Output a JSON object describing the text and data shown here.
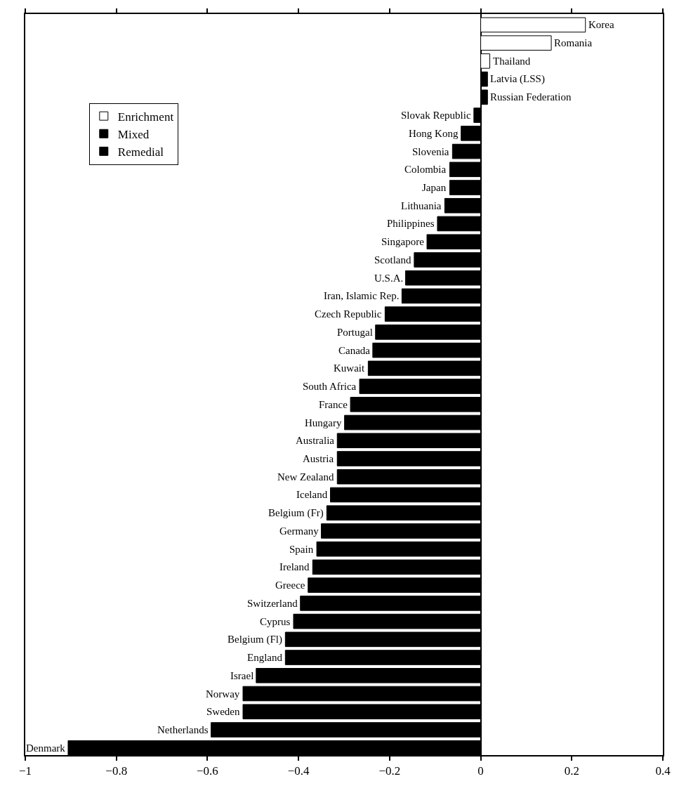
{
  "chart_data": {
    "type": "bar",
    "orientation": "horizontal",
    "stacked": true,
    "categories": [
      "Korea",
      "Romania",
      "Thailand",
      "Latvia (LSS)",
      "Russian Federation",
      "Slovak Republic",
      "Hong Kong",
      "Slovenia",
      "Colombia",
      "Japan",
      "Lithuania",
      "Philippines",
      "Singapore",
      "Scotland",
      "U.S.A.",
      "Iran, Islamic Rep.",
      "Czech Republic",
      "Portugal",
      "Canada",
      "Kuwait",
      "South Africa",
      "France",
      "Hungary",
      "Australia",
      "Austria",
      "New Zealand",
      "Iceland",
      "Belgium (Fr)",
      "Germany",
      "Spain",
      "Ireland",
      "Greece",
      "Switzerland",
      "Cyprus",
      "Belgium (Fl)",
      "England",
      "Israel",
      "Norway",
      "Sweden",
      "Netherlands",
      "Denmark"
    ],
    "series": [
      {
        "name": "Enrichment",
        "color": "#ffffff",
        "values": [
          0.23,
          0.155,
          0.02,
          null,
          null,
          null,
          null,
          null,
          null,
          null,
          null,
          null,
          null,
          null,
          null,
          null,
          null,
          null,
          null,
          null,
          null,
          null,
          null,
          null,
          null,
          null,
          null,
          null,
          null,
          null,
          null,
          null,
          null,
          null,
          null,
          null,
          null,
          null,
          null,
          null,
          null
        ]
      },
      {
        "name": "Mixed",
        "color": "#000000",
        "values": [
          null,
          null,
          null,
          0.015,
          0.015,
          null,
          null,
          null,
          null,
          null,
          null,
          null,
          null,
          null,
          null,
          null,
          null,
          null,
          null,
          null,
          null,
          null,
          null,
          null,
          null,
          null,
          null,
          null,
          null,
          null,
          null,
          null,
          null,
          null,
          null,
          null,
          null,
          null,
          null,
          null,
          null
        ]
      },
      {
        "name": "Remedial",
        "color": "#000000",
        "values": [
          null,
          null,
          null,
          null,
          null,
          -0.015,
          -0.043,
          -0.062,
          -0.068,
          -0.068,
          -0.079,
          -0.095,
          -0.118,
          -0.146,
          -0.165,
          -0.173,
          -0.21,
          -0.231,
          -0.237,
          -0.247,
          -0.266,
          -0.286,
          -0.299,
          -0.315,
          -0.315,
          -0.315,
          -0.33,
          -0.338,
          -0.35,
          -0.36,
          -0.369,
          -0.379,
          -0.396,
          -0.411,
          -0.429,
          -0.429,
          -0.493,
          -0.522,
          -0.522,
          -0.592,
          -0.906
        ]
      }
    ],
    "xlim": [
      -1,
      0.4
    ],
    "xticks": [
      {
        "value": -1,
        "label": "−1"
      },
      {
        "value": -0.8,
        "label": "−0.8"
      },
      {
        "value": -0.6,
        "label": "−0.6"
      },
      {
        "value": -0.4,
        "label": "−0.4"
      },
      {
        "value": -0.2,
        "label": "−0.2"
      },
      0,
      0.2,
      0.4
    ],
    "legend": "top left"
  }
}
